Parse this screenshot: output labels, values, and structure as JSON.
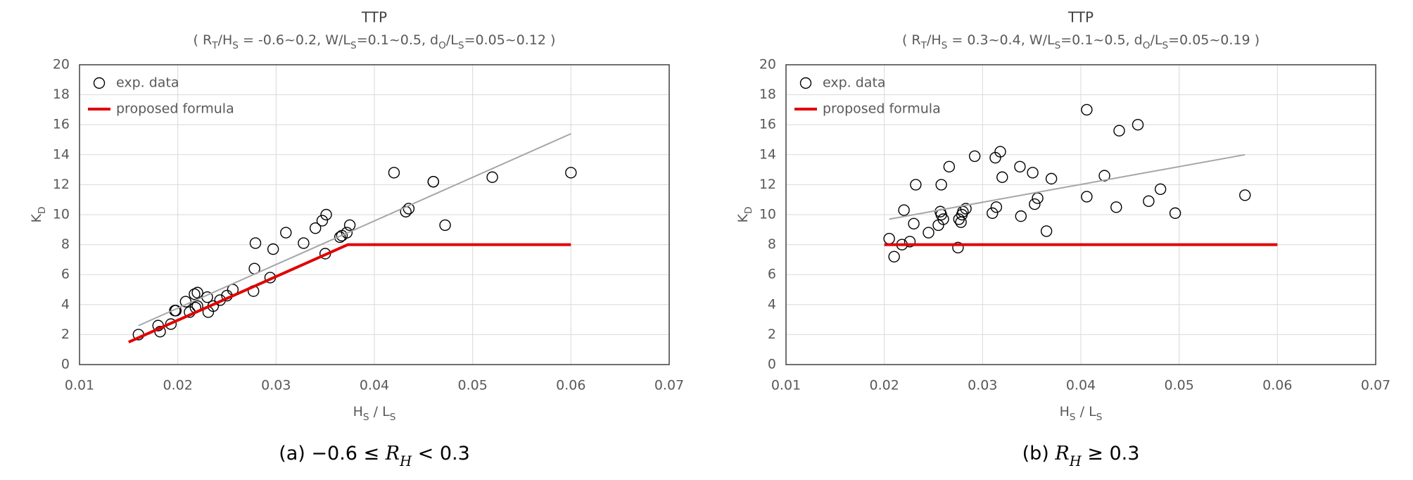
{
  "chart_data": [
    {
      "type": "scatter",
      "title": "TTP",
      "subtitle": [
        {
          "text": "( R"
        },
        {
          "text": "T",
          "sub": true
        },
        {
          "text": "/H"
        },
        {
          "text": "S",
          "sub": true
        },
        {
          "text": " = -0.6~0.2, W/L"
        },
        {
          "text": "S",
          "sub": true
        },
        {
          "text": "=0.1~0.5, d"
        },
        {
          "text": "O",
          "sub": true
        },
        {
          "text": "/L"
        },
        {
          "text": "S",
          "sub": true
        },
        {
          "text": "=0.05~0.12 )"
        }
      ],
      "x_label": [
        {
          "text": "H"
        },
        {
          "text": "S",
          "sub": true
        },
        {
          "text": " / L"
        },
        {
          "text": "S",
          "sub": true
        }
      ],
      "y_label": [
        {
          "text": "K"
        },
        {
          "text": "D",
          "sub": true
        }
      ],
      "caption": [
        {
          "text": "(a) −0.6 ≤ "
        },
        {
          "text": "R",
          "italic": true
        },
        {
          "text": "H",
          "italic": true,
          "sub": true
        },
        {
          "text": " < 0.3"
        }
      ],
      "xlim": [
        0.01,
        0.07
      ],
      "xticks": [
        0.01,
        0.02,
        0.03,
        0.04,
        0.05,
        0.06,
        0.07
      ],
      "ylim": [
        0,
        20
      ],
      "yticks": [
        0,
        2,
        4,
        6,
        8,
        10,
        12,
        14,
        16,
        18,
        20
      ],
      "grid": true,
      "legend": "upper left",
      "series": [
        {
          "name": "exp. data",
          "mode": "markers",
          "color": "#000000",
          "x": [
            0.016,
            0.018,
            0.0182,
            0.0193,
            0.0197,
            0.0198,
            0.0208,
            0.0212,
            0.0217,
            0.0218,
            0.022,
            0.022,
            0.023,
            0.0231,
            0.0236,
            0.0243,
            0.025,
            0.0256,
            0.0277,
            0.0278,
            0.0279,
            0.0294,
            0.0297,
            0.031,
            0.0328,
            0.034,
            0.0347,
            0.035,
            0.0351,
            0.0365,
            0.0367,
            0.0372,
            0.0375,
            0.042,
            0.0432,
            0.0435,
            0.046,
            0.046,
            0.0472,
            0.052,
            0.06
          ],
          "values": [
            2.0,
            2.6,
            2.2,
            2.7,
            3.6,
            3.6,
            4.2,
            3.5,
            4.7,
            3.8,
            4.8,
            3.9,
            4.5,
            3.5,
            3.9,
            4.3,
            4.6,
            5.0,
            4.9,
            6.4,
            8.1,
            5.8,
            7.7,
            8.8,
            8.1,
            9.1,
            9.6,
            7.4,
            10.0,
            8.5,
            8.6,
            8.8,
            9.3,
            12.8,
            10.2,
            10.4,
            12.2,
            12.2,
            9.3,
            12.5,
            12.8
          ]
        },
        {
          "name": "proposed formula",
          "mode": "line",
          "color": "#e00000",
          "x": [
            0.015,
            0.0373,
            0.06
          ],
          "values": [
            1.5,
            8.0,
            8.0
          ]
        },
        {
          "mode": "line",
          "color": "#a6a6a6",
          "x": [
            0.016,
            0.06
          ],
          "values": [
            2.6,
            15.4
          ]
        }
      ]
    },
    {
      "type": "scatter",
      "title": "TTP",
      "subtitle": [
        {
          "text": "( R"
        },
        {
          "text": "T",
          "sub": true
        },
        {
          "text": "/H"
        },
        {
          "text": "S",
          "sub": true
        },
        {
          "text": " = 0.3~0.4, W/L"
        },
        {
          "text": "S",
          "sub": true
        },
        {
          "text": "=0.1~0.5, d"
        },
        {
          "text": "O",
          "sub": true
        },
        {
          "text": "/L"
        },
        {
          "text": "S",
          "sub": true
        },
        {
          "text": "=0.05~0.19 )"
        }
      ],
      "x_label": [
        {
          "text": "H"
        },
        {
          "text": "S",
          "sub": true
        },
        {
          "text": " / L"
        },
        {
          "text": "S",
          "sub": true
        }
      ],
      "y_label": [
        {
          "text": "K"
        },
        {
          "text": "D",
          "sub": true
        }
      ],
      "caption": [
        {
          "text": "(b) "
        },
        {
          "text": "R",
          "italic": true
        },
        {
          "text": "H",
          "italic": true,
          "sub": true
        },
        {
          "text": " ≥ 0.3"
        }
      ],
      "xlim": [
        0.01,
        0.07
      ],
      "xticks": [
        0.01,
        0.02,
        0.03,
        0.04,
        0.05,
        0.06,
        0.07
      ],
      "ylim": [
        0,
        20
      ],
      "yticks": [
        0,
        2,
        4,
        6,
        8,
        10,
        12,
        14,
        16,
        18,
        20
      ],
      "grid": true,
      "legend": "upper left",
      "series": [
        {
          "name": "exp. data",
          "mode": "markers",
          "color": "#000000",
          "x": [
            0.0205,
            0.021,
            0.0218,
            0.022,
            0.0226,
            0.023,
            0.0232,
            0.0245,
            0.0255,
            0.0257,
            0.0258,
            0.0258,
            0.026,
            0.0266,
            0.0275,
            0.0276,
            0.0278,
            0.0279,
            0.028,
            0.0283,
            0.0292,
            0.031,
            0.0313,
            0.0314,
            0.0318,
            0.032,
            0.0338,
            0.0339,
            0.0351,
            0.0353,
            0.0356,
            0.0365,
            0.037,
            0.0406,
            0.0406,
            0.0424,
            0.0436,
            0.0439,
            0.0458,
            0.0469,
            0.0481,
            0.0496,
            0.0567
          ],
          "values": [
            8.4,
            7.2,
            8.0,
            10.3,
            8.2,
            9.4,
            12.0,
            8.8,
            9.3,
            10.2,
            10.0,
            12.0,
            9.7,
            13.2,
            7.8,
            9.7,
            9.5,
            10.0,
            10.2,
            10.4,
            13.9,
            10.1,
            13.8,
            10.5,
            14.2,
            12.5,
            13.2,
            9.9,
            12.8,
            10.7,
            11.1,
            8.9,
            12.4,
            17.0,
            11.2,
            12.6,
            10.5,
            15.6,
            16.0,
            10.9,
            11.7,
            10.1,
            11.3
          ]
        },
        {
          "name": "proposed formula",
          "mode": "line",
          "color": "#e00000",
          "x": [
            0.02,
            0.06
          ],
          "values": [
            8.0,
            8.0
          ]
        },
        {
          "mode": "line",
          "color": "#a6a6a6",
          "x": [
            0.0205,
            0.0567
          ],
          "values": [
            9.7,
            14.0
          ]
        }
      ]
    }
  ]
}
